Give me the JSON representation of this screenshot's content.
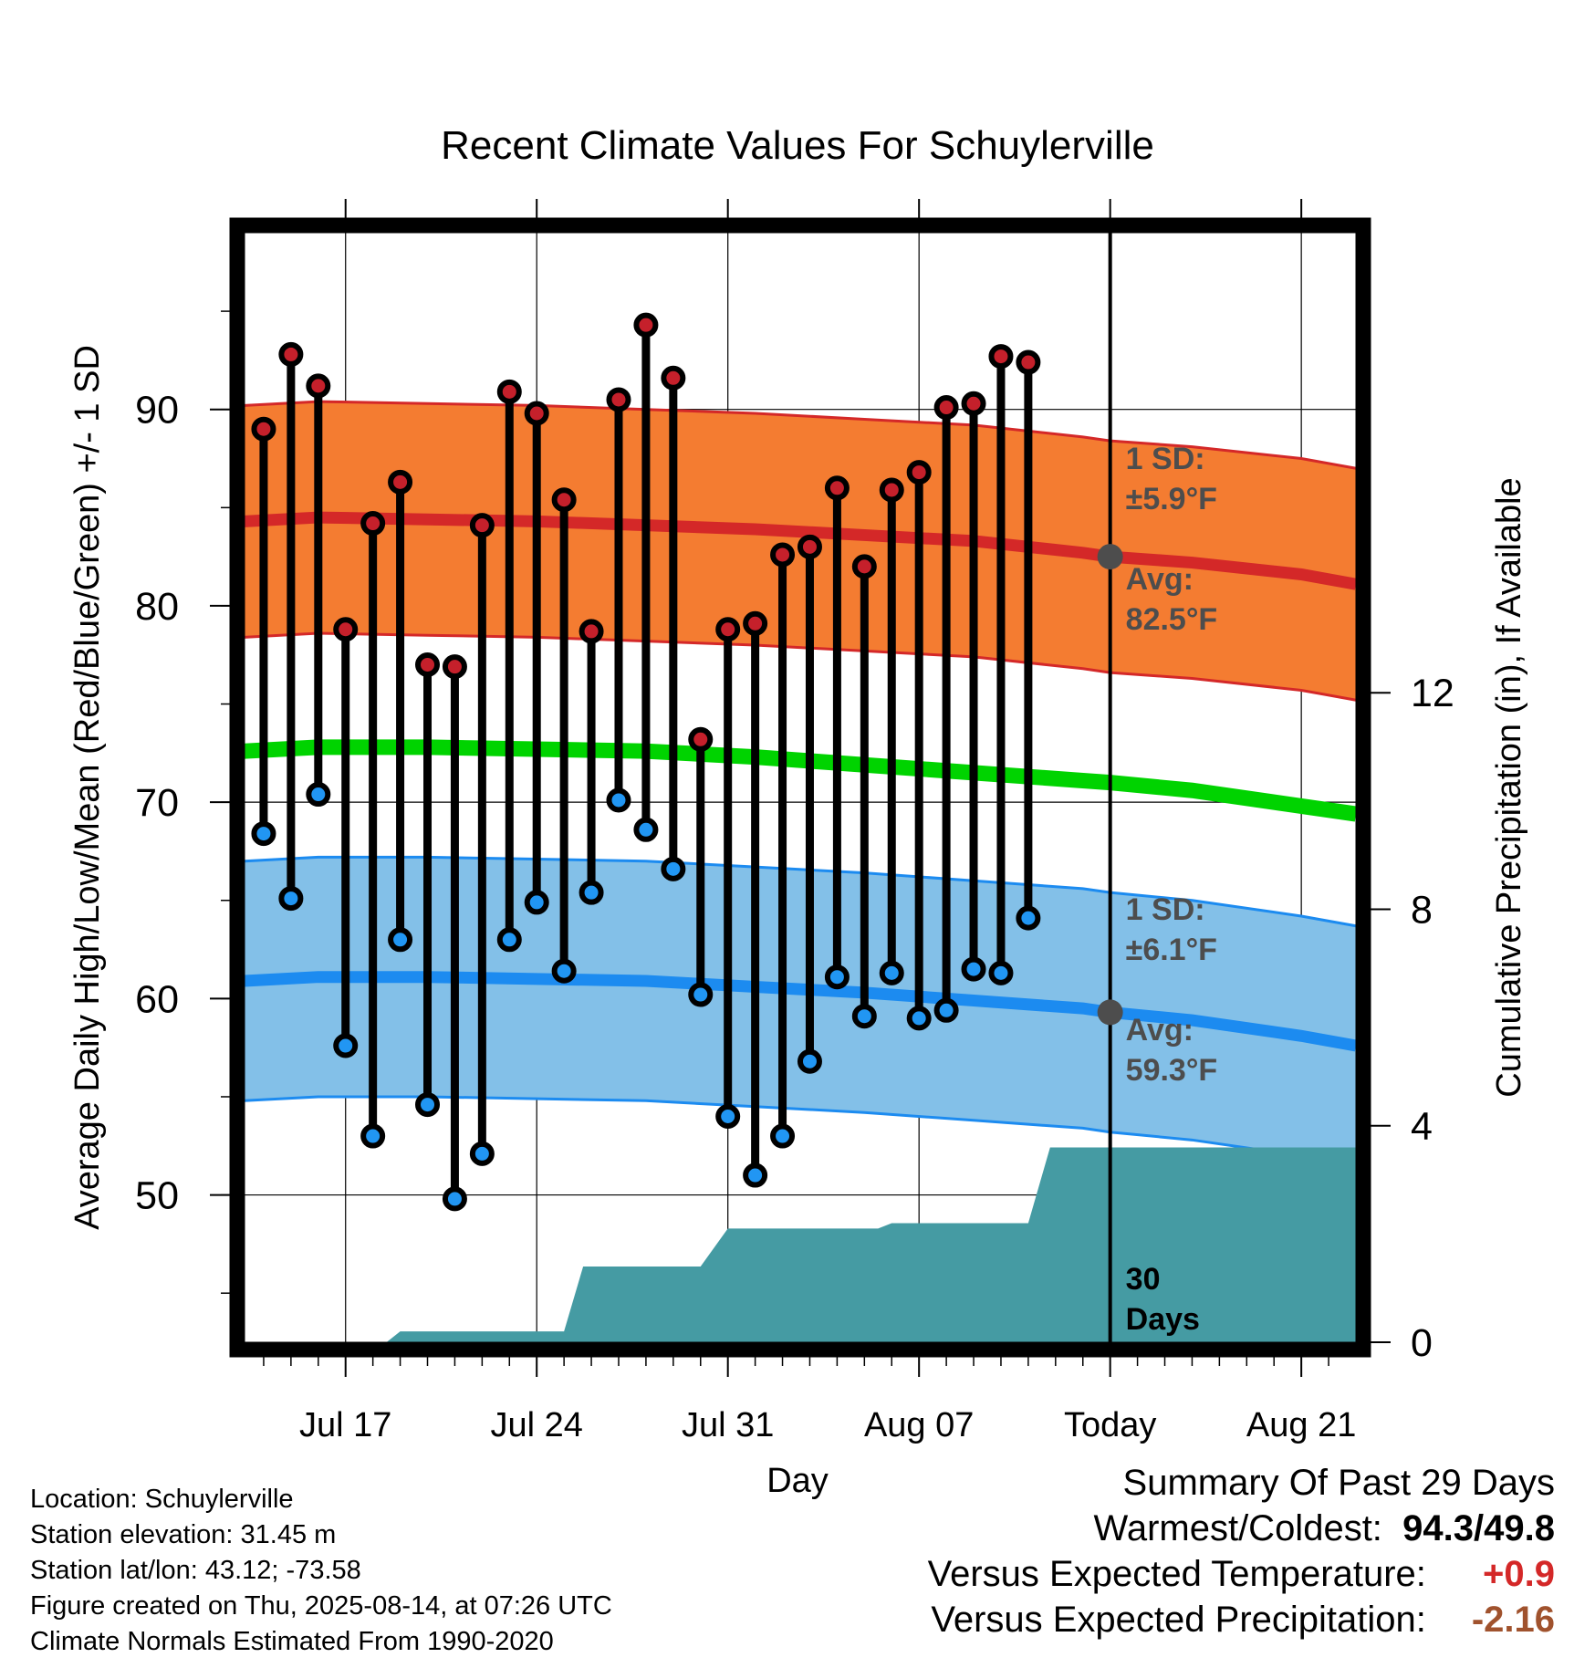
{
  "chart_data": {
    "type": "line",
    "title": "Recent Climate Values For Schuylerville",
    "xlabel": "Day",
    "ylabel": "Average Daily High/Low/Mean (Red/Blue/Green) +/- 1 SD",
    "y2label": "Cumulative Precipitation (in), If Available",
    "x_ticks": [
      "Jul 17",
      "Jul 24",
      "Jul 31",
      "Aug 07",
      "Today",
      "Aug 21"
    ],
    "x_tick_days": [
      3,
      10,
      17,
      24,
      31,
      38
    ],
    "xlim": [
      -0.7,
      40
    ],
    "ylim": [
      42.5,
      99
    ],
    "y_ticks": [
      50,
      60,
      70,
      80,
      90
    ],
    "y2lim": [
      0,
      20.5
    ],
    "y2_ticks": [
      0,
      4,
      8,
      12
    ],
    "grid": true,
    "today_day": 31,
    "highs": {
      "day": [
        0,
        1,
        2,
        3,
        4,
        5,
        6,
        7,
        8,
        9,
        10,
        11,
        12,
        13,
        14,
        15,
        16,
        17,
        18,
        19,
        20,
        21,
        22,
        23,
        24,
        25,
        26,
        27,
        28,
        29
      ],
      "values": [
        89.0,
        92.8,
        91.2,
        78.8,
        84.2,
        86.3,
        77.0,
        76.9,
        84.1,
        90.9,
        89.8,
        85.4,
        78.7,
        90.5,
        94.3,
        91.6,
        73.2,
        78.8,
        79.1,
        82.6,
        83.0,
        86.0,
        82.0,
        85.9,
        86.8,
        90.1,
        90.3,
        92.7,
        92.4,
        null
      ]
    },
    "lows": {
      "day": [
        0,
        1,
        2,
        3,
        4,
        5,
        6,
        7,
        8,
        9,
        10,
        11,
        12,
        13,
        14,
        15,
        16,
        17,
        18,
        19,
        20,
        21,
        22,
        23,
        24,
        25,
        26,
        27,
        28,
        29
      ],
      "values": [
        68.4,
        65.1,
        70.4,
        57.6,
        53.0,
        63.0,
        54.6,
        49.8,
        52.1,
        63.0,
        64.9,
        61.4,
        65.4,
        70.1,
        68.6,
        66.6,
        60.2,
        54.0,
        51.0,
        53.0,
        56.8,
        61.1,
        59.1,
        61.3,
        59.0,
        59.4,
        61.5,
        61.3,
        64.1,
        null
      ]
    },
    "normals": {
      "day": [
        -0.7,
        2,
        6,
        10,
        14,
        18,
        22,
        26,
        30,
        31,
        34,
        38,
        40
      ],
      "high_avg": [
        84.3,
        84.5,
        84.4,
        84.3,
        84.1,
        83.9,
        83.6,
        83.3,
        82.7,
        82.5,
        82.2,
        81.6,
        81.1
      ],
      "high_sd": 5.9,
      "low_avg": [
        60.9,
        61.1,
        61.1,
        61.0,
        60.9,
        60.6,
        60.3,
        59.9,
        59.5,
        59.3,
        58.9,
        58.1,
        57.6
      ],
      "low_sd": 6.1,
      "mean_avg": [
        72.6,
        72.8,
        72.8,
        72.7,
        72.6,
        72.3,
        71.9,
        71.5,
        71.1,
        71.0,
        70.6,
        69.8,
        69.4
      ]
    },
    "precip_cumulative": {
      "day": [
        -0.7,
        4.5,
        5,
        11,
        11.7,
        16,
        17,
        22.5,
        23,
        28,
        28.8,
        40
      ],
      "values": [
        0,
        0,
        0.2,
        0.2,
        1.4,
        1.4,
        2.1,
        2.1,
        2.2,
        2.2,
        3.6,
        3.6
      ]
    },
    "annotations": {
      "high_sd_label": [
        "1 SD:",
        "±5.9°F"
      ],
      "high_avg_label": [
        "Avg:",
        "82.5°F"
      ],
      "low_sd_label": [
        "1 SD:",
        "±6.1°F"
      ],
      "low_avg_label": [
        "Avg:",
        "59.3°F"
      ],
      "precip_label": [
        "30",
        "Days"
      ]
    },
    "colors": {
      "high_band": "#f47c31",
      "high_line": "#d42828",
      "low_band": "#83c0e8",
      "low_line": "#1c8bf0",
      "mean_line": "#00d300",
      "precip": "#459ba3",
      "high_dot": "#c5202b",
      "low_dot": "#2196f3",
      "annotation": "#4d4d4d"
    }
  },
  "footer": {
    "location": "Location: Schuylerville",
    "elevation": "Station elevation: 31.45 m",
    "latlon": "Station lat/lon: 43.12; -73.58",
    "created": "Figure created on Thu, 2025-08-14, at 07:26 UTC",
    "normals": "Climate Normals Estimated From 1990-2020"
  },
  "summary": {
    "heading": "Summary Of Past 29 Days",
    "warmest_label": "Warmest/Coldest:",
    "warmest_value": "94.3",
    "slash": "/",
    "coldest_value": "49.8",
    "temp_label": "Versus Expected Temperature:",
    "temp_value": "+0.9",
    "temp_color": "#d42828",
    "precip_label": "Versus Expected Precipitation:",
    "precip_value": "-2.16",
    "precip_color": "#a0522d"
  }
}
